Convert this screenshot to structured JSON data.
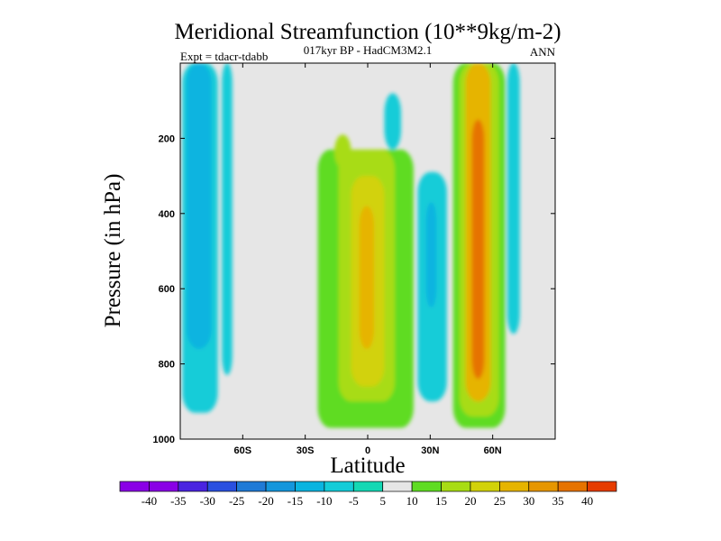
{
  "chart_data": {
    "type": "heatmap",
    "title": "Meridional Streamfunction (10**9kg/m-2)",
    "subtitle": "017kyr BP - HadCM3M2.1",
    "left_label": "Expt = tdacr-tdabb",
    "right_label": "ANN",
    "xlabel": "Latitude",
    "ylabel": "Pressure (in hPa)",
    "xlim": [
      -90,
      90
    ],
    "ylim": [
      1000,
      0
    ],
    "x_ticks": [
      {
        "value": -60,
        "label": "60S"
      },
      {
        "value": -30,
        "label": "30S"
      },
      {
        "value": 0,
        "label": "0"
      },
      {
        "value": 30,
        "label": "30N"
      },
      {
        "value": 60,
        "label": "60N"
      }
    ],
    "y_ticks": [
      {
        "value": 200,
        "label": "200"
      },
      {
        "value": 400,
        "label": "400"
      },
      {
        "value": 600,
        "label": "600"
      },
      {
        "value": 800,
        "label": "800"
      },
      {
        "value": 1000,
        "label": "1000"
      }
    ],
    "background_color": "#e6e6e6",
    "colorbar": {
      "labels": [
        "-40",
        "-35",
        "-30",
        "-25",
        "-20",
        "-15",
        "-10",
        "-5",
        "5",
        "10",
        "15",
        "20",
        "25",
        "30",
        "35",
        "40"
      ],
      "colors": [
        "#8a00e6",
        "#4a24e0",
        "#2a50e0",
        "#1f7ad6",
        "#1496dc",
        "#0ab4e0",
        "#14ccd8",
        "#14d8b4",
        "#e6e6e6",
        "#5fdc23",
        "#a8dc14",
        "#d2d20a",
        "#e6b400",
        "#e69600",
        "#e67300",
        "#e63c00"
      ]
    },
    "regions": [
      {
        "name": "band-60S-outer",
        "value": -7,
        "x_range": [
          -89,
          -72
        ],
        "p_range": [
          0,
          930
        ]
      },
      {
        "name": "band-60S-core",
        "value": -12,
        "x_range": [
          -87,
          -75
        ],
        "p_range": [
          0,
          760
        ]
      },
      {
        "name": "band-60S-thin",
        "value": -7,
        "x_range": [
          -70,
          -65
        ],
        "p_range": [
          0,
          830
        ]
      },
      {
        "name": "cell-0-outer",
        "value": 7,
        "x_range": [
          -24,
          22
        ],
        "p_range": [
          230,
          970
        ]
      },
      {
        "name": "cell-0-mid",
        "value": 12,
        "x_range": [
          -14,
          13
        ],
        "p_range": [
          230,
          900
        ]
      },
      {
        "name": "cell-0-inner",
        "value": 17,
        "x_range": [
          -8,
          8
        ],
        "p_range": [
          300,
          860
        ]
      },
      {
        "name": "cell-0-core",
        "value": 22,
        "x_range": [
          -4,
          3
        ],
        "p_range": [
          380,
          760
        ]
      },
      {
        "name": "tropical-cap",
        "value": 12,
        "x_range": [
          -16,
          -8
        ],
        "p_range": [
          190,
          280
        ]
      },
      {
        "name": "band-30N-outer",
        "value": -7,
        "x_range": [
          24,
          38
        ],
        "p_range": [
          290,
          900
        ]
      },
      {
        "name": "band-30N-core",
        "value": -12,
        "x_range": [
          28,
          33
        ],
        "p_range": [
          370,
          650
        ]
      },
      {
        "name": "upper-small",
        "value": -7,
        "x_range": [
          8,
          16
        ],
        "p_range": [
          80,
          230
        ]
      },
      {
        "name": "cell-60N-outer",
        "value": 7,
        "x_range": [
          41,
          66
        ],
        "p_range": [
          0,
          970
        ]
      },
      {
        "name": "cell-60N-mid",
        "value": 12,
        "x_range": [
          44,
          63
        ],
        "p_range": [
          0,
          940
        ]
      },
      {
        "name": "cell-60N-inner",
        "value": 22,
        "x_range": [
          47,
          59
        ],
        "p_range": [
          0,
          900
        ]
      },
      {
        "name": "cell-60N-core",
        "value": 32,
        "x_range": [
          50,
          56
        ],
        "p_range": [
          150,
          840
        ]
      },
      {
        "name": "band-70N",
        "value": -7,
        "x_range": [
          67,
          73
        ],
        "p_range": [
          0,
          720
        ]
      }
    ]
  }
}
